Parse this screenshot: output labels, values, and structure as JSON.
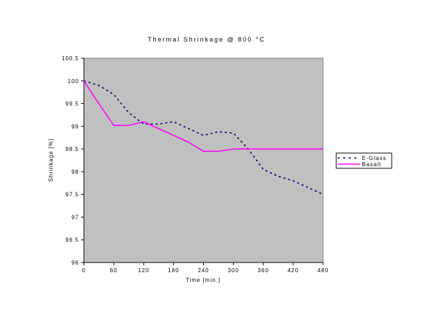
{
  "chart_data": {
    "type": "line",
    "title": "Thermal Shrinkage @ 800 °C",
    "xlabel": "Time [min.]",
    "ylabel": "Shrinkage [%]",
    "xlim": [
      0,
      480
    ],
    "ylim": [
      96,
      100.5
    ],
    "xticks": [
      0,
      60,
      120,
      180,
      240,
      300,
      360,
      420,
      480
    ],
    "yticks": [
      96,
      96.5,
      97,
      97.5,
      98,
      98.5,
      99,
      99.5,
      100,
      100.5
    ],
    "grid": false,
    "plot_background": "#c0c0c0",
    "legend": "right",
    "x": [
      0,
      30,
      60,
      90,
      120,
      150,
      180,
      210,
      240,
      270,
      300,
      330,
      360,
      390,
      420,
      450,
      480
    ],
    "series": [
      {
        "name": "E-Glass",
        "color": "#000066",
        "style": "dashed",
        "values": [
          100,
          99.9,
          99.7,
          99.3,
          99.05,
          99.05,
          99.1,
          98.95,
          98.8,
          98.88,
          98.85,
          98.5,
          98.05,
          97.9,
          97.8,
          97.65,
          97.5
        ]
      },
      {
        "name": "Basalt",
        "color": "#ff00ff",
        "style": "solid",
        "values": [
          100,
          99.5,
          99.02,
          99.02,
          99.1,
          98.95,
          98.8,
          98.65,
          98.45,
          98.45,
          98.5,
          98.5,
          98.5,
          98.5,
          98.5,
          98.5,
          98.5
        ]
      }
    ]
  }
}
